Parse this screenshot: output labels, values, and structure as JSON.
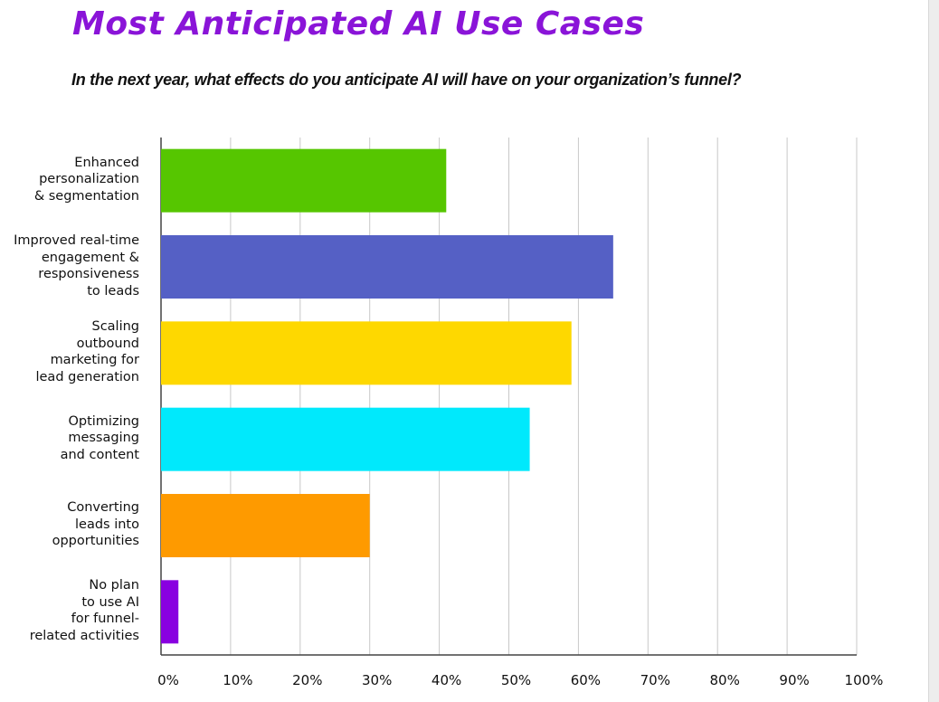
{
  "title": "Most Anticipated AI Use Cases",
  "subtitle": "In the next year, what effects do you anticipate AI will have on your organization’s funnel?",
  "chart_data": {
    "type": "bar",
    "orientation": "horizontal",
    "categories": [
      "Enhanced\npersonalization\n& segmentation",
      "Improved real-time\nengagement &\nresponsiveness\nto leads",
      "Scaling\noutbound\nmarketing for\nlead generation",
      "Optimizing\nmessaging\nand content",
      "Converting\nleads into\nopportunities",
      "No plan\nto use AI\nfor funnel-\nrelated activities"
    ],
    "values": [
      41,
      65,
      59,
      53,
      30,
      2.5
    ],
    "colors": [
      "#56c600",
      "#5560c5",
      "#fed800",
      "#00e9fc",
      "#fe9a00",
      "#8900e0"
    ],
    "xlim": [
      0,
      100
    ],
    "x_ticks": [
      "0%",
      "10%",
      "20%",
      "30%",
      "40%",
      "50%",
      "60%",
      "70%",
      "80%",
      "90%",
      "100%"
    ],
    "grid": true,
    "legend": "none"
  }
}
